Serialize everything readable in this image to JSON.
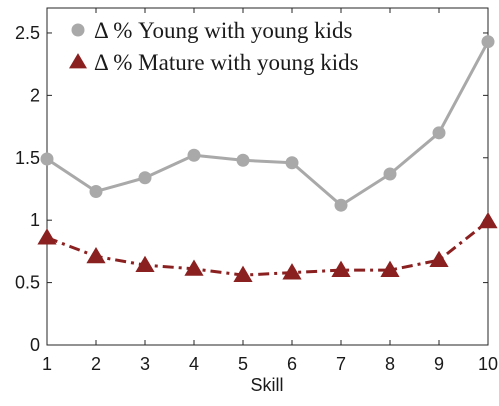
{
  "chart_data": {
    "type": "line",
    "xlabel": "Skill",
    "ylabel": "",
    "title": "",
    "xlim": [
      1,
      10
    ],
    "ylim": [
      0,
      2.7
    ],
    "x": [
      1,
      2,
      3,
      4,
      5,
      6,
      7,
      8,
      9,
      10
    ],
    "x_ticks": [
      "1",
      "2",
      "3",
      "4",
      "5",
      "6",
      "7",
      "8",
      "9",
      "10"
    ],
    "y_ticks": [
      "0",
      "0.5",
      "1",
      "1.5",
      "2",
      "2.5"
    ],
    "y_tick_values": [
      0,
      0.5,
      1,
      1.5,
      2,
      2.5
    ],
    "grid": false,
    "legend_position": "top-right",
    "series": [
      {
        "name": "Δ % Young with young kids",
        "values": [
          1.49,
          1.23,
          1.34,
          1.52,
          1.48,
          1.46,
          1.12,
          1.37,
          1.7,
          2.43
        ],
        "color": "#a9a9a9",
        "marker": "circle",
        "line_style": "solid"
      },
      {
        "name": "Δ % Mature with young kids",
        "values": [
          0.86,
          0.71,
          0.64,
          0.61,
          0.56,
          0.58,
          0.6,
          0.6,
          0.68,
          0.99
        ],
        "color": "#8b2020",
        "marker": "triangle",
        "line_style": "dash-dot"
      }
    ]
  }
}
